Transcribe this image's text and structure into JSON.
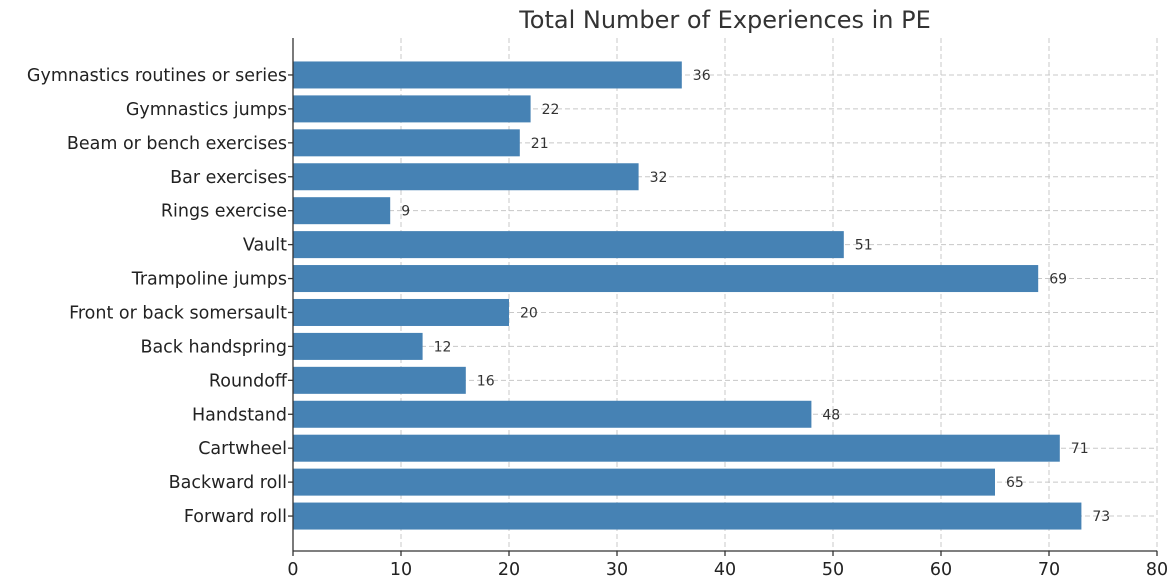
{
  "chart_data": {
    "type": "bar",
    "orientation": "horizontal",
    "title": "Total Number of Experiences in PE",
    "xlabel": "",
    "ylabel": "",
    "categories": [
      "Forward roll",
      "Backward roll",
      "Cartwheel",
      "Handstand",
      "Roundoff",
      "Back handspring",
      "Front or back somersault",
      "Trampoline jumps",
      "Vault",
      "Rings exercise",
      "Bar exercises",
      "Beam or bench exercises",
      "Gymnastics jumps",
      "Gymnastics routines or series"
    ],
    "values": [
      73,
      65,
      71,
      48,
      16,
      12,
      20,
      69,
      51,
      9,
      32,
      21,
      22,
      36
    ],
    "xlim": [
      0,
      80
    ],
    "xticks": [
      0,
      10,
      20,
      30,
      40,
      50,
      60,
      70,
      80
    ],
    "grid": true,
    "data_labels": true,
    "bar_color": "#4682b4"
  }
}
